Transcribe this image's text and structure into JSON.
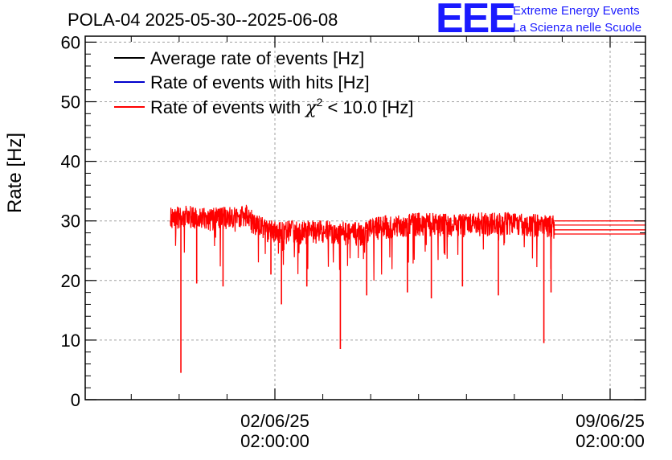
{
  "chart_data": {
    "type": "line",
    "title": "POLA-04 2025-05-30--2025-06-08",
    "xlabel": "",
    "ylabel": "Rate [Hz]",
    "ylim": [
      0,
      61
    ],
    "yticks": [
      0,
      10,
      20,
      30,
      40,
      50,
      60
    ],
    "xticks": [
      {
        "date": "02/06/25",
        "time": "02:00:00"
      },
      {
        "date": "09/06/25",
        "time": "02:00:00"
      }
    ],
    "grid": true,
    "legend_position": "top-left",
    "x_unit": "days since 2025-05-30 00:00",
    "x_range": [
      0,
      10
    ],
    "logo": {
      "text": "EEE",
      "line1": "Extreme Energy Events",
      "line2": "La Scienza nelle Scuole"
    },
    "series": [
      {
        "name": "Average rate of events [Hz]",
        "color": "#000000"
      },
      {
        "name": "Rate of events with hits [Hz]",
        "color": "#0000cc"
      },
      {
        "name": "Rate of events with χ² < 10.0 [Hz]",
        "color": "#ff0000",
        "legend_parts": [
          "Rate of events with ",
          "χ",
          "2",
          " < 10.0 [Hz]"
        ],
        "x": [
          0.9,
          1.3,
          1.7,
          2.1,
          2.5,
          2.55,
          2.9,
          3.3,
          3.7,
          4.1,
          4.5,
          4.9,
          5.3,
          5.7,
          6.1,
          6.5,
          6.9,
          7.3,
          7.7,
          8.1,
          8.5,
          8.8,
          8.92
        ],
        "y": [
          30.8,
          31.0,
          30.6,
          30.8,
          31.2,
          30.5,
          28.8,
          28.5,
          28.4,
          28.6,
          28.3,
          28.2,
          29.3,
          29.6,
          29.8,
          29.7,
          29.6,
          29.8,
          29.9,
          29.9,
          29.6,
          29.5,
          29.3
        ],
        "dips": [
          {
            "x": 1.12,
            "y": 4.5
          },
          {
            "x": 1.45,
            "y": 19.5
          },
          {
            "x": 2.0,
            "y": 19.0
          },
          {
            "x": 3.0,
            "y": 21.0
          },
          {
            "x": 3.22,
            "y": 16.0
          },
          {
            "x": 3.75,
            "y": 19.0
          },
          {
            "x": 4.45,
            "y": 8.5
          },
          {
            "x": 5.0,
            "y": 17.5
          },
          {
            "x": 5.85,
            "y": 18.0
          },
          {
            "x": 6.35,
            "y": 17.0
          },
          {
            "x": 7.0,
            "y": 19.0
          },
          {
            "x": 7.75,
            "y": 17.5
          },
          {
            "x": 8.7,
            "y": 9.5
          },
          {
            "x": 8.85,
            "y": 18.0
          }
        ],
        "tail": {
          "x_start": 8.92,
          "x_end": 10,
          "levels": [
            27.8,
            28.5,
            29.3,
            30.0
          ]
        }
      }
    ]
  }
}
